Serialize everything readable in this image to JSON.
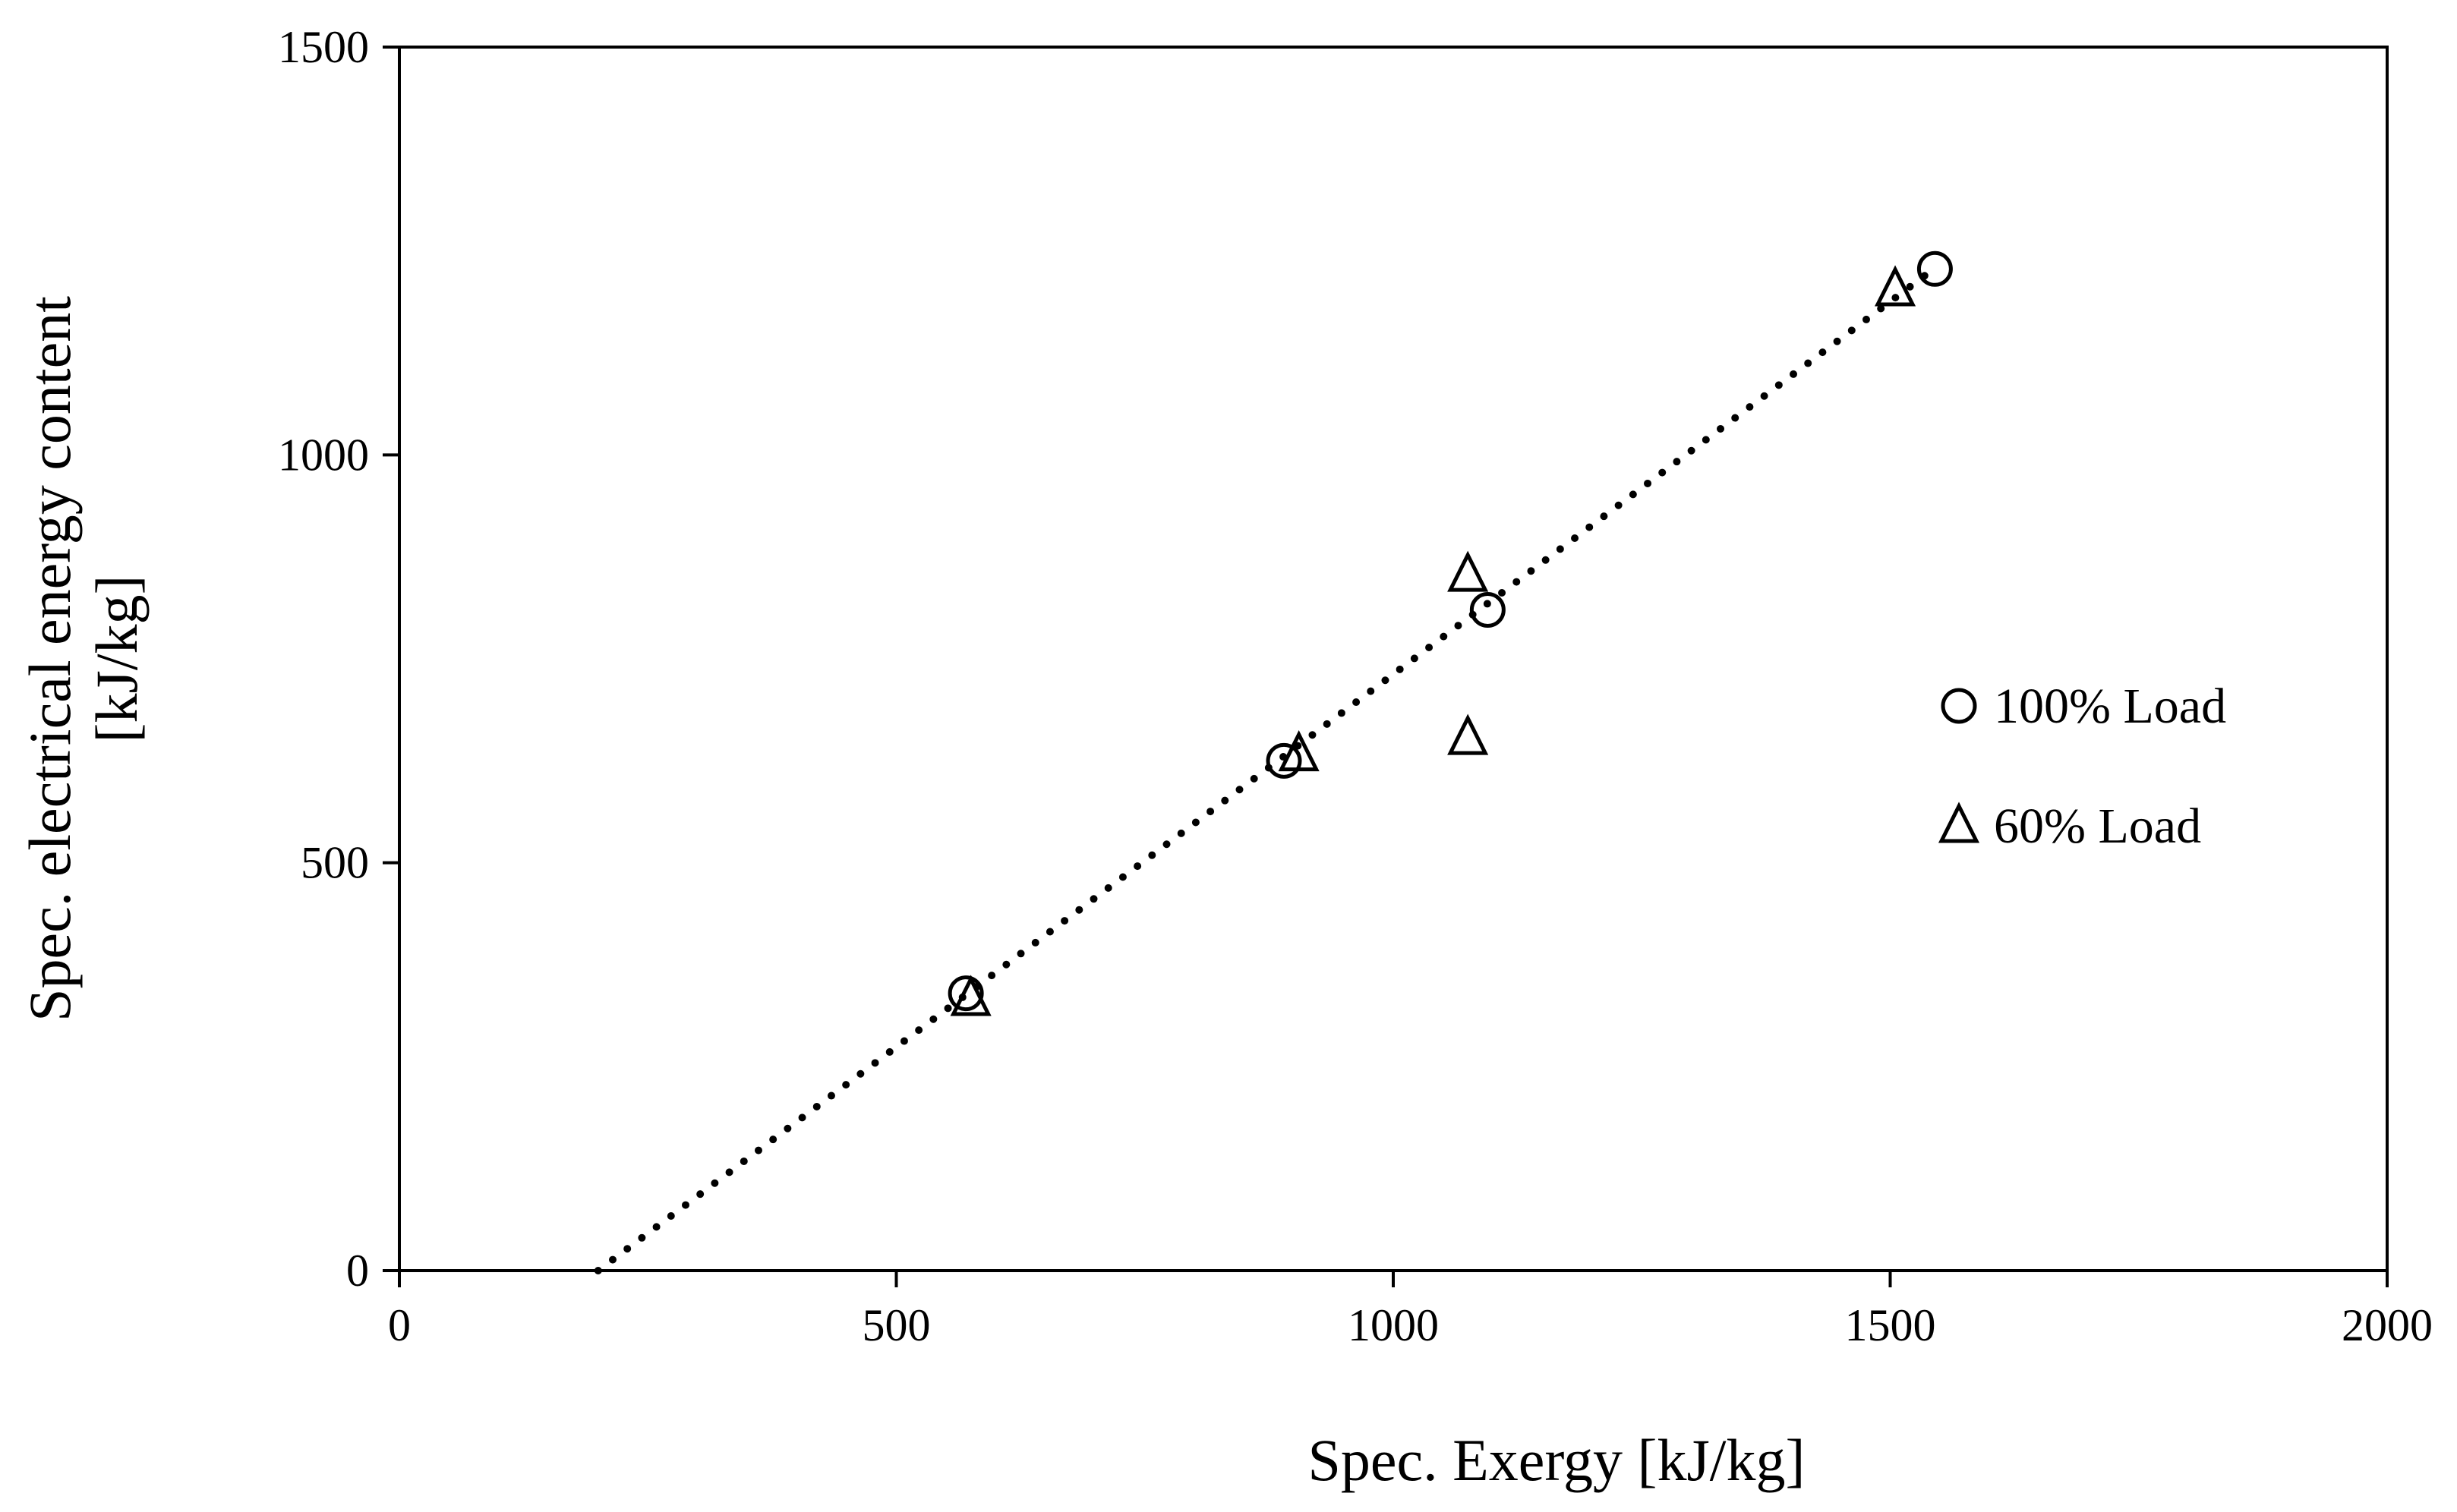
{
  "chart_data": {
    "type": "scatter",
    "title": "",
    "xlabel": "Spec. Exergy [kJ/kg]",
    "ylabel_lines": [
      "Spec. electrical energy content",
      "[kJ/kg]"
    ],
    "xlim": [
      0,
      2000
    ],
    "ylim": [
      0,
      1500
    ],
    "xticks": [
      0,
      500,
      1000,
      1500,
      2000
    ],
    "yticks": [
      0,
      500,
      1000,
      1500
    ],
    "grid": false,
    "legend_position": "right",
    "series": [
      {
        "name": "100% Load",
        "marker": "circle",
        "points": [
          {
            "x": 570,
            "y": 340
          },
          {
            "x": 890,
            "y": 625
          },
          {
            "x": 1095,
            "y": 810
          },
          {
            "x": 1545,
            "y": 1228
          }
        ]
      },
      {
        "name": "60% Load",
        "marker": "triangle",
        "points": [
          {
            "x": 575,
            "y": 335
          },
          {
            "x": 905,
            "y": 635
          },
          {
            "x": 1075,
            "y": 855
          },
          {
            "x": 1075,
            "y": 655
          },
          {
            "x": 1505,
            "y": 1205
          }
        ]
      }
    ],
    "trendline": {
      "style": "dotted",
      "from": {
        "x": 200,
        "y": 0
      },
      "to": {
        "x": 1535,
        "y": 1220
      }
    }
  }
}
